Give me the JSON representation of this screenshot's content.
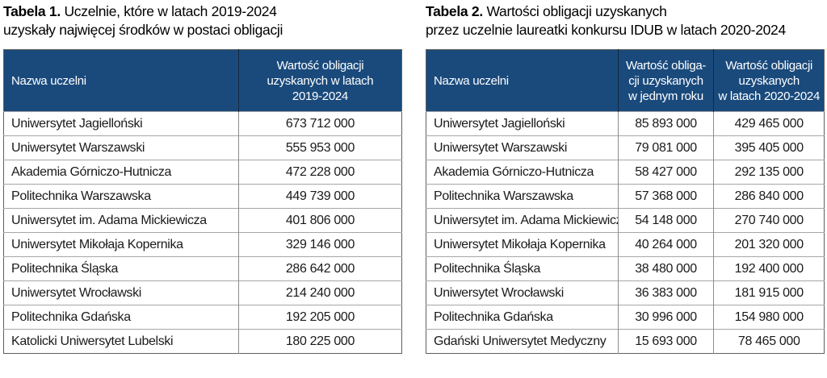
{
  "colors": {
    "header_bg": "#1a4a7c",
    "header_text": "#ffffff",
    "body_text": "#1a1a1a",
    "row_border": "#a6a6a6",
    "column_border_body": "#8c8c8c",
    "column_border_header": "#14273e",
    "outer_border": "#5f5f5f",
    "page_bg": "#ffffff"
  },
  "table1": {
    "title_label": "Tabela 1.",
    "title_line1": "Uczelnie, które w latach 2019-2024",
    "title_line2": "uzyskały najwięcej środków w postaci obligacji",
    "columns": [
      "Nazwa uczelni",
      "Wartość obligacji\nuzyskanych w latach\n2019-2024"
    ],
    "col_widths": [
      "59%",
      "41%"
    ],
    "rows": [
      [
        "Uniwersytet Jagielloński",
        "673 712 000"
      ],
      [
        "Uniwersytet Warszawski",
        "555 953 000"
      ],
      [
        "Akademia Górniczo-Hutnicza",
        "472 228 000"
      ],
      [
        "Politechnika Warszawska",
        "449 739 000"
      ],
      [
        "Uniwersytet im. Adama Mickiewicza",
        "401 806 000"
      ],
      [
        "Uniwersytet Mikołaja Kopernika",
        "329 146 000"
      ],
      [
        "Politechnika Śląska",
        "286 642 000"
      ],
      [
        "Uniwersytet Wrocławski",
        "214 240 000"
      ],
      [
        "Politechnika Gdańska",
        "192 205 000"
      ],
      [
        "Katolicki Uniwersytet Lubelski",
        "180 225 000"
      ]
    ]
  },
  "table2": {
    "title_label": "Tabela 2.",
    "title_line1": "Wartości obligacji uzyskanych",
    "title_line2": "przez uczelnie laureatki konkursu IDUB w latach 2020-2024",
    "columns": [
      "Nazwa uczelni",
      "Wartość obliga-\ncji uzyskanych\nw jednym roku",
      "Wartość obligacji\nuzyskanych\nw latach 2020-2024"
    ],
    "col_widths": [
      "48.2%",
      "24.1%",
      "27.7%"
    ],
    "rows": [
      [
        "Uniwersytet Jagielloński",
        "85 893 000",
        "429 465 000"
      ],
      [
        "Uniwersytet Warszawski",
        "79 081 000",
        "395 405 000"
      ],
      [
        "Akademia Górniczo-Hutnicza",
        "58 427 000",
        "292 135 000"
      ],
      [
        "Politechnika Warszawska",
        "57 368 000",
        "286 840 000"
      ],
      [
        "Uniwersytet im. Adama Mickiewicza",
        "54 148 000",
        "270 740 000"
      ],
      [
        "Uniwersytet Mikołaja Kopernika",
        "40 264 000",
        "201 320 000"
      ],
      [
        "Politechnika Śląska",
        "38 480 000",
        "192 400 000"
      ],
      [
        "Uniwersytet Wrocławski",
        "36 383 000",
        "181 915 000"
      ],
      [
        "Politechnika Gdańska",
        "30 996 000",
        "154 980 000"
      ],
      [
        "Gdański Uniwersytet Medyczny",
        "15 693 000",
        "78 465 000"
      ]
    ]
  }
}
